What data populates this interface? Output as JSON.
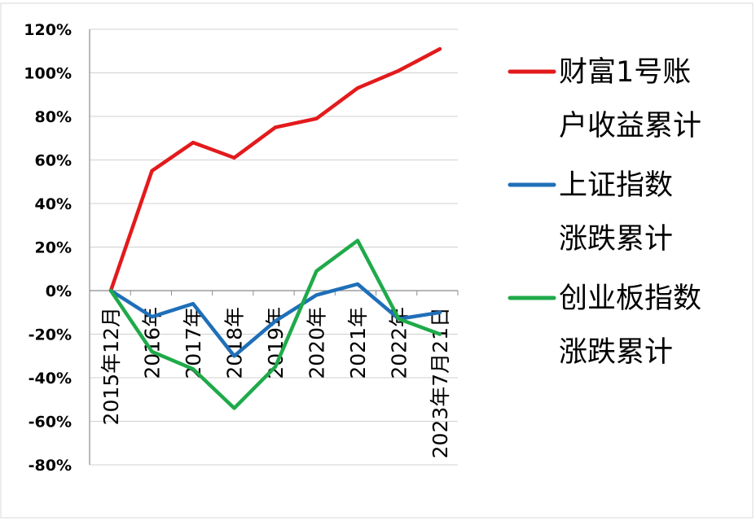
{
  "chart_data": {
    "type": "line",
    "categories": [
      "2015年12月",
      "2016年",
      "2017年",
      "2018年",
      "2019年",
      "2020年",
      "2021年",
      "2022年",
      "2023年7月21日"
    ],
    "series": [
      {
        "name": "财富1号账户收益累计",
        "legend_lines": [
          "财富1号账",
          "户收益累计"
        ],
        "color": "#e31a1c",
        "values": [
          0,
          55,
          68,
          61,
          75,
          79,
          93,
          101,
          111
        ]
      },
      {
        "name": "上证指数涨跌累计",
        "legend_lines": [
          "上证指数",
          "涨跌累计"
        ],
        "color": "#1f6fb8",
        "values": [
          0,
          -12,
          -6,
          -30,
          -14,
          -2,
          3,
          -13,
          -10
        ]
      },
      {
        "name": "创业板指数涨跌累计",
        "legend_lines": [
          "创业板指数",
          "涨跌累计"
        ],
        "color": "#1faa4a",
        "values": [
          0,
          -28,
          -36,
          -54,
          -35,
          9,
          23,
          -13,
          -20
        ]
      }
    ],
    "yticks": [
      "120%",
      "100%",
      "80%",
      "60%",
      "40%",
      "20%",
      "0%",
      "-20%",
      "-40%",
      "-60%",
      "-80%"
    ],
    "ylim": [
      -80,
      120
    ],
    "title": "",
    "xlabel": "",
    "ylabel": "",
    "grid": true,
    "legend_position": "right"
  }
}
